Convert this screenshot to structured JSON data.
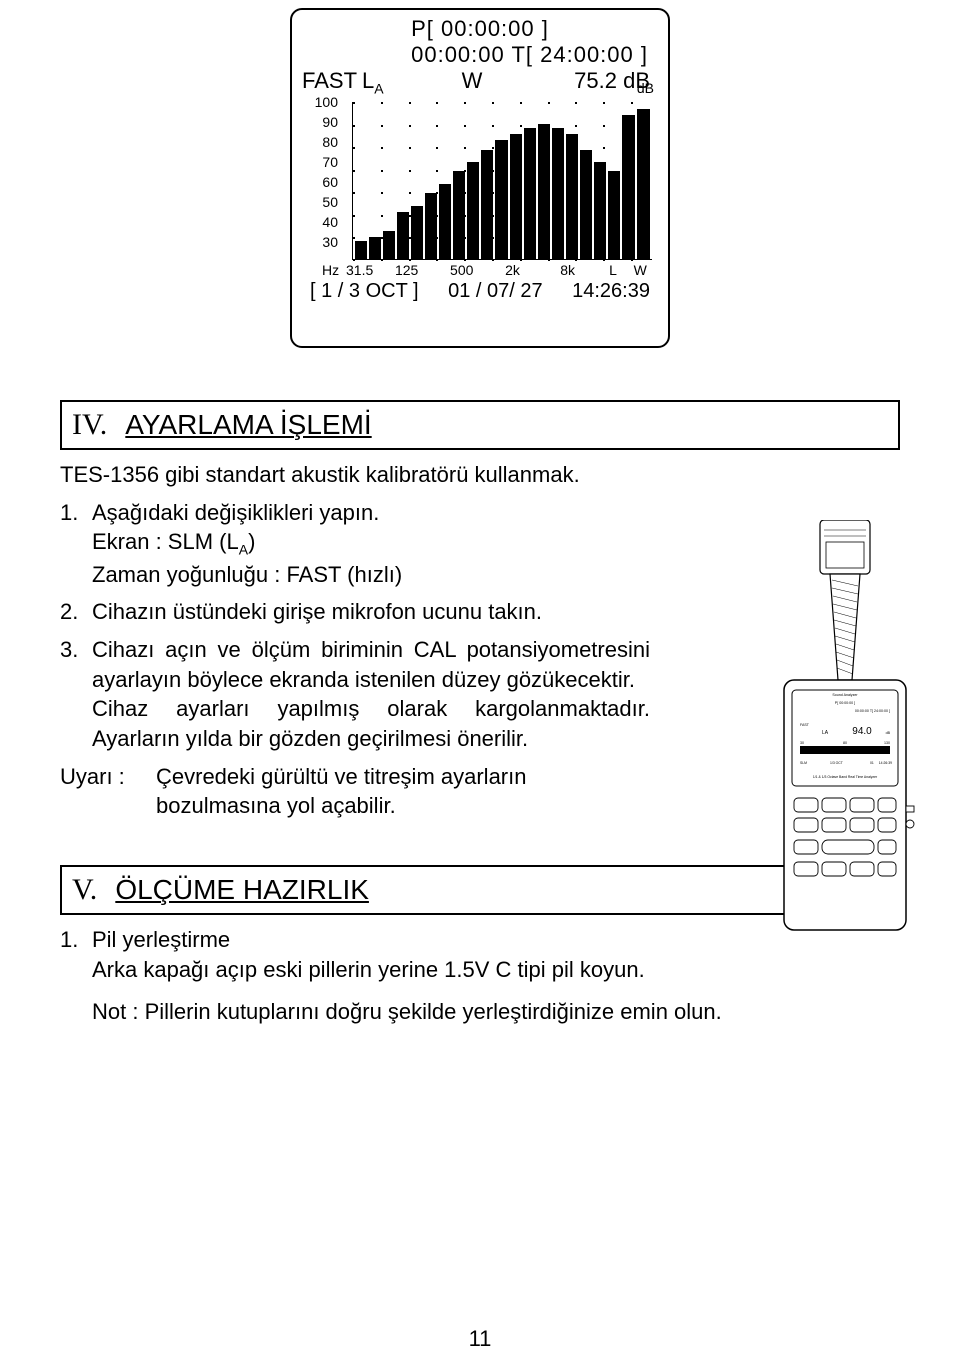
{
  "lcd": {
    "line1": "P[ 00:00:00 ]",
    "line2": "00:00:00 T[ 24:00:00 ]",
    "fast": "FAST",
    "weight_L": "L",
    "weight_A": "A",
    "weight_W": "W",
    "reading": "75.2 dB",
    "y_unit": "dB",
    "y_ticks": [
      100,
      90,
      80,
      70,
      60,
      50,
      40,
      30
    ],
    "x_unit": "Hz",
    "x_labels": [
      "31.5",
      "125",
      "500",
      "2k",
      "8k",
      "L",
      "W"
    ],
    "bars_pct": [
      12,
      14,
      18,
      30,
      34,
      42,
      48,
      56,
      62,
      70,
      76,
      80,
      84,
      86,
      84,
      80,
      70,
      62,
      56,
      92,
      96
    ],
    "bottom_left": "[ 1 / 3  OCT ]",
    "bottom_mid": "01 / 07/ 27",
    "bottom_right": "14:26:39"
  },
  "section4": {
    "roman": "IV.",
    "title": "AYARLAMA İŞLEMİ",
    "intro": "TES-1356 gibi standart akustik kalibratörü kullanmak.",
    "items": [
      {
        "n": "1.",
        "lines": [
          "Aşağıdaki değişiklikleri yapın.",
          "Ekran : SLM (L",
          "Zaman yoğunluğu : FAST (hızlı)"
        ],
        "sub": "A",
        "after_sub": ")"
      },
      {
        "n": "2.",
        "lines": [
          "Cihazın üstündeki girişe mikrofon ucunu takın."
        ]
      },
      {
        "n": "3.",
        "lines": [
          "Cihazı açın ve ölçüm biriminin CAL potansiyometresini ayarlayın böylece ekranda istenilen düzey gözükecektir.",
          "Cihaz ayarları yapılmış olarak kargolanmaktadır. Ayarların yılda bir gözden geçirilmesi önerilir."
        ]
      }
    ],
    "warn_label": "Uyarı :",
    "warn_text": "Çevredeki gürültü ve titreşim ayarların bozulmasına yol açabilir."
  },
  "device_mini_lcd": {
    "title": "Sound Analyzer",
    "p": "P[ 00:00:00 ]",
    "t": "00:00:00 T[ 24:00:00 ]",
    "fast": "FAST",
    "la": "LA",
    "val": "94.0",
    "db": "dB",
    "scale_lo": "30",
    "scale_mid": "80",
    "scale_hi": "130",
    "slm": "SLM",
    "oct": "1/3  OCT",
    "date": "01",
    "time": "14:26:39",
    "sub": "1/1 & 1/3 Octave Band Real Time Analyzer"
  },
  "section5": {
    "roman": "V.",
    "title": "ÖLÇÜME HAZIRLIK",
    "item1_n": "1.",
    "item1_title": "Pil yerleştirme",
    "item1_body": "Arka kapağı açıp eski pillerin yerine 1.5V C tipi pil koyun.",
    "note": "Not : Pillerin kutuplarını doğru şekilde yerleştirdiğinize emin olun."
  },
  "page_number": "11"
}
